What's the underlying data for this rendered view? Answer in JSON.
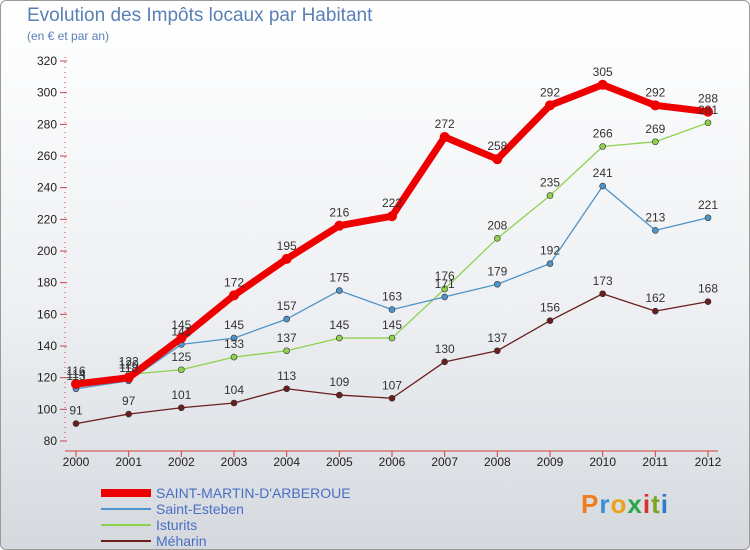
{
  "header": {
    "title": "Evolution des Impôts locaux par Habitant",
    "subtitle": "(en € et par an)"
  },
  "logo": {
    "text": "Proxiti",
    "colors": [
      "#f07c1e",
      "#3a8fd6",
      "#e8a21b",
      "#2aa84a",
      "#d8322e",
      "#7aa620",
      "#2b7bc8"
    ]
  },
  "chart_data": {
    "type": "line",
    "title": "Evolution des Impôts locaux par Habitant",
    "subtitle": "(en € et par an)",
    "xlabel": "",
    "ylabel": "",
    "x": [
      2000,
      2001,
      2002,
      2003,
      2004,
      2005,
      2006,
      2007,
      2008,
      2009,
      2010,
      2011,
      2012
    ],
    "ylim": [
      80,
      320
    ],
    "yticks": [
      80,
      100,
      120,
      140,
      160,
      180,
      200,
      220,
      240,
      260,
      280,
      300,
      320
    ],
    "grid": false,
    "legend_position": "bottom-left",
    "series": [
      {
        "name": "SAINT-MARTIN-D'ARBEROUE",
        "color": "#ee0000",
        "values": [
          116,
          120,
          145,
          172,
          195,
          216,
          222,
          272,
          258,
          292,
          305,
          292,
          288
        ],
        "labels": [
          "116",
          "120",
          "145",
          "172",
          "195",
          "216",
          "222",
          "272",
          "258",
          "292",
          "305",
          "292",
          "288"
        ]
      },
      {
        "name": "Saint-Esteben",
        "color": "#4f94c8",
        "values": [
          113,
          118,
          141,
          145,
          157,
          175,
          163,
          171,
          179,
          192,
          241,
          213,
          221
        ],
        "labels": [
          "113",
          "118",
          "141",
          "145",
          "157",
          "175",
          "163",
          "171",
          "179",
          "192",
          "241",
          "213",
          "221"
        ]
      },
      {
        "name": "Isturits",
        "color": "#8fd14f",
        "values": [
          114,
          122,
          125,
          133,
          137,
          145,
          145,
          176,
          208,
          235,
          266,
          269,
          281
        ],
        "labels": [
          "114",
          "122",
          "125",
          "133",
          "137",
          "145",
          "145",
          "176",
          "208",
          "235",
          "266",
          "269",
          "281"
        ]
      },
      {
        "name": "Méharin",
        "color": "#6b1e1e",
        "values": [
          91,
          97,
          101,
          104,
          113,
          109,
          107,
          130,
          137,
          156,
          173,
          162,
          168
        ],
        "labels": [
          "91",
          "97",
          "101",
          "104",
          "113",
          "109",
          "107",
          "130",
          "137",
          "156",
          "173",
          "162",
          "168"
        ]
      }
    ]
  }
}
